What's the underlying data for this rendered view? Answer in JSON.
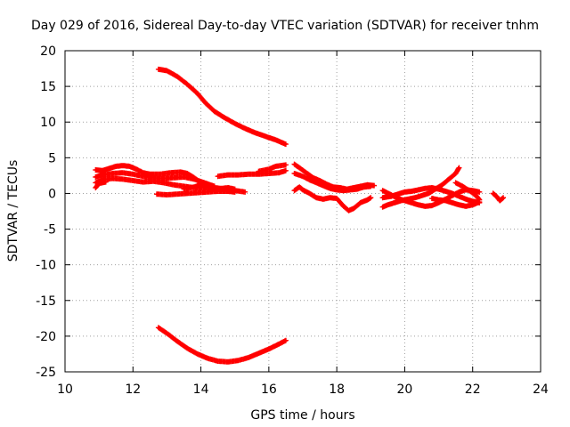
{
  "chart_data": {
    "type": "scatter",
    "title": "Day 029 of 2016, Sidereal Day-to-day VTEC variation (SDTVAR) for receiver tnhm",
    "xlabel": "GPS time / hours",
    "ylabel": "SDTVAR / TECUs",
    "xlim": [
      10,
      24
    ],
    "ylim": [
      -25,
      20
    ],
    "xticks": [
      10,
      12,
      14,
      16,
      18,
      20,
      22,
      24
    ],
    "yticks": [
      -25,
      -20,
      -15,
      -10,
      -5,
      0,
      5,
      10,
      15,
      20
    ],
    "grid": true,
    "marker": "plus",
    "color": "#ff0000",
    "series": [
      {
        "points": [
          [
            12.75,
            17.4
          ],
          [
            13.0,
            17.2
          ],
          [
            13.3,
            16.4
          ],
          [
            13.6,
            15.3
          ],
          [
            13.9,
            14.0
          ],
          [
            14.15,
            12.6
          ],
          [
            14.4,
            11.5
          ],
          [
            14.7,
            10.6
          ],
          [
            15.0,
            9.8
          ],
          [
            15.3,
            9.1
          ],
          [
            15.6,
            8.5
          ],
          [
            15.9,
            8.0
          ],
          [
            16.2,
            7.5
          ],
          [
            16.5,
            6.9
          ]
        ]
      },
      {
        "points": [
          [
            12.75,
            -18.8
          ],
          [
            13.0,
            -19.6
          ],
          [
            13.3,
            -20.7
          ],
          [
            13.6,
            -21.7
          ],
          [
            13.9,
            -22.5
          ],
          [
            14.2,
            -23.1
          ],
          [
            14.5,
            -23.5
          ],
          [
            14.8,
            -23.6
          ],
          [
            15.1,
            -23.4
          ],
          [
            15.4,
            -23.0
          ],
          [
            15.7,
            -22.4
          ],
          [
            16.0,
            -21.8
          ],
          [
            16.3,
            -21.1
          ],
          [
            16.5,
            -20.6
          ]
        ]
      },
      {
        "points": [
          [
            10.9,
            3.3
          ],
          [
            11.1,
            3.2
          ],
          [
            11.3,
            3.5
          ],
          [
            11.5,
            3.8
          ],
          [
            11.7,
            3.9
          ],
          [
            11.9,
            3.8
          ],
          [
            12.1,
            3.4
          ],
          [
            12.3,
            2.9
          ],
          [
            12.5,
            2.7
          ],
          [
            12.8,
            2.7
          ],
          [
            13.1,
            2.9
          ],
          [
            13.4,
            3.0
          ],
          [
            13.6,
            2.8
          ],
          [
            13.8,
            2.2
          ],
          [
            14.0,
            1.5
          ],
          [
            14.2,
            1.0
          ],
          [
            14.4,
            0.7
          ]
        ]
      },
      {
        "points": [
          [
            10.9,
            2.3
          ],
          [
            11.1,
            2.6
          ],
          [
            11.4,
            2.8
          ],
          [
            11.7,
            2.9
          ],
          [
            12.0,
            2.7
          ],
          [
            12.3,
            2.4
          ],
          [
            12.6,
            2.2
          ],
          [
            12.9,
            2.1
          ],
          [
            13.2,
            2.2
          ],
          [
            13.5,
            2.3
          ],
          [
            13.8,
            2.0
          ],
          [
            14.1,
            1.5
          ],
          [
            14.4,
            1.0
          ]
        ]
      },
      {
        "points": [
          [
            10.9,
            1.5
          ],
          [
            11.1,
            1.9
          ],
          [
            11.4,
            2.1
          ],
          [
            11.7,
            2.0
          ],
          [
            12.0,
            1.8
          ],
          [
            12.3,
            1.6
          ],
          [
            12.6,
            1.7
          ],
          [
            12.9,
            1.5
          ],
          [
            13.2,
            1.2
          ],
          [
            13.5,
            1.0
          ],
          [
            13.8,
            0.8
          ],
          [
            14.1,
            0.8
          ],
          [
            14.4,
            0.6
          ],
          [
            14.7,
            0.5
          ],
          [
            15.0,
            0.4
          ],
          [
            15.3,
            0.2
          ]
        ]
      },
      {
        "points": [
          [
            10.9,
            0.8
          ],
          [
            11.0,
            1.4
          ],
          [
            11.2,
            1.6
          ]
        ]
      },
      {
        "points": [
          [
            12.7,
            -0.1
          ],
          [
            13.0,
            -0.2
          ],
          [
            13.3,
            -0.1
          ],
          [
            13.6,
            0.0
          ],
          [
            13.9,
            0.1
          ],
          [
            14.2,
            0.2
          ],
          [
            14.5,
            0.3
          ],
          [
            14.8,
            0.3
          ],
          [
            15.0,
            0.2
          ]
        ]
      },
      {
        "points": [
          [
            13.5,
            0.6
          ],
          [
            13.8,
            0.9
          ],
          [
            14.0,
            1.2
          ],
          [
            14.2,
            1.1
          ],
          [
            14.4,
            0.8
          ],
          [
            14.6,
            0.7
          ],
          [
            14.8,
            0.8
          ],
          [
            15.0,
            0.6
          ]
        ]
      },
      {
        "points": [
          [
            14.5,
            2.4
          ],
          [
            14.8,
            2.6
          ],
          [
            15.1,
            2.6
          ],
          [
            15.4,
            2.7
          ],
          [
            15.7,
            2.7
          ],
          [
            16.0,
            2.8
          ],
          [
            16.3,
            2.9
          ],
          [
            16.5,
            3.2
          ]
        ]
      },
      {
        "points": [
          [
            15.7,
            3.1
          ],
          [
            16.0,
            3.4
          ],
          [
            16.2,
            3.8
          ],
          [
            16.5,
            4.0
          ]
        ]
      },
      {
        "points": [
          [
            16.75,
            4.1
          ],
          [
            16.9,
            3.6
          ],
          [
            17.1,
            2.9
          ],
          [
            17.3,
            2.2
          ],
          [
            17.5,
            1.8
          ],
          [
            17.7,
            1.3
          ],
          [
            17.9,
            0.9
          ],
          [
            18.1,
            0.8
          ],
          [
            18.3,
            0.6
          ],
          [
            18.5,
            0.8
          ],
          [
            18.7,
            1.0
          ],
          [
            18.9,
            1.2
          ],
          [
            19.1,
            1.1
          ]
        ]
      },
      {
        "points": [
          [
            16.75,
            2.8
          ],
          [
            17.0,
            2.4
          ],
          [
            17.2,
            1.9
          ],
          [
            17.4,
            1.5
          ],
          [
            17.6,
            1.1
          ],
          [
            17.8,
            0.7
          ],
          [
            18.0,
            0.5
          ],
          [
            18.2,
            0.4
          ],
          [
            18.4,
            0.5
          ],
          [
            18.6,
            0.6
          ],
          [
            18.8,
            0.9
          ],
          [
            19.0,
            1.0
          ]
        ]
      },
      {
        "points": [
          [
            16.75,
            0.4
          ],
          [
            16.9,
            0.9
          ],
          [
            17.0,
            0.5
          ],
          [
            17.2,
            0.0
          ],
          [
            17.4,
            -0.6
          ],
          [
            17.6,
            -0.8
          ],
          [
            17.8,
            -0.6
          ],
          [
            18.0,
            -0.7
          ],
          [
            18.2,
            -1.8
          ],
          [
            18.35,
            -2.4
          ],
          [
            18.5,
            -2.1
          ],
          [
            18.7,
            -1.3
          ],
          [
            18.9,
            -0.9
          ],
          [
            19.0,
            -0.6
          ]
        ]
      },
      {
        "points": [
          [
            19.35,
            -1.9
          ],
          [
            19.5,
            -1.6
          ],
          [
            19.7,
            -1.3
          ],
          [
            19.9,
            -1.0
          ],
          [
            20.1,
            -0.8
          ],
          [
            20.3,
            -0.6
          ],
          [
            20.5,
            -0.3
          ],
          [
            20.7,
            0.0
          ],
          [
            20.9,
            0.6
          ],
          [
            21.1,
            1.2
          ],
          [
            21.3,
            2.0
          ],
          [
            21.5,
            2.8
          ],
          [
            21.6,
            3.6
          ]
        ]
      },
      {
        "points": [
          [
            19.35,
            0.4
          ],
          [
            19.6,
            -0.2
          ],
          [
            19.8,
            -0.7
          ],
          [
            20.0,
            -1.0
          ],
          [
            20.2,
            -1.3
          ],
          [
            20.4,
            -1.6
          ],
          [
            20.6,
            -1.8
          ],
          [
            20.8,
            -1.7
          ],
          [
            21.0,
            -1.3
          ],
          [
            21.2,
            -0.8
          ],
          [
            21.4,
            -0.3
          ],
          [
            21.6,
            0.2
          ],
          [
            21.8,
            0.5
          ],
          [
            22.0,
            0.4
          ],
          [
            22.2,
            0.2
          ]
        ]
      },
      {
        "points": [
          [
            19.35,
            -0.6
          ],
          [
            19.6,
            -0.4
          ],
          [
            19.8,
            -0.1
          ],
          [
            20.0,
            0.2
          ],
          [
            20.2,
            0.3
          ],
          [
            20.4,
            0.5
          ],
          [
            20.6,
            0.7
          ],
          [
            20.8,
            0.8
          ],
          [
            21.0,
            0.6
          ],
          [
            21.2,
            0.3
          ],
          [
            21.4,
            0.0
          ],
          [
            21.6,
            -0.4
          ],
          [
            21.8,
            -0.8
          ],
          [
            22.0,
            -1.1
          ],
          [
            22.2,
            -1.3
          ]
        ]
      },
      {
        "points": [
          [
            20.8,
            -0.7
          ],
          [
            21.0,
            -0.9
          ],
          [
            21.2,
            -1.0
          ],
          [
            21.4,
            -1.3
          ],
          [
            21.6,
            -1.6
          ],
          [
            21.8,
            -1.8
          ],
          [
            22.0,
            -1.6
          ],
          [
            22.2,
            -1.2
          ]
        ]
      },
      {
        "points": [
          [
            21.5,
            1.5
          ],
          [
            21.7,
            1.0
          ],
          [
            21.9,
            0.4
          ],
          [
            22.1,
            -0.3
          ],
          [
            22.2,
            -0.9
          ]
        ]
      },
      {
        "points": [
          [
            22.6,
            0.0
          ],
          [
            22.7,
            -0.4
          ],
          [
            22.8,
            -1.0
          ],
          [
            22.9,
            -0.6
          ]
        ]
      }
    ]
  }
}
